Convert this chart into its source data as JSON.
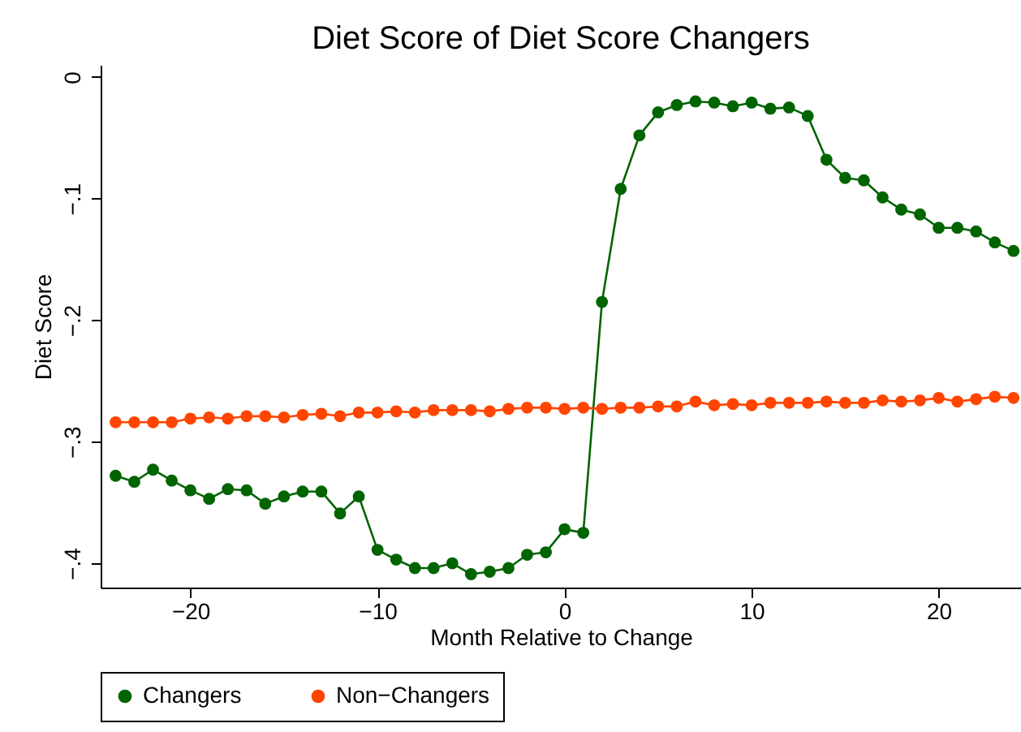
{
  "chart_data": {
    "type": "line",
    "title": "Diet Score of Diet Score Changers",
    "xlabel": "Month Relative to Change",
    "ylabel": "Diet Score",
    "x": [
      -24,
      -23,
      -22,
      -21,
      -20,
      -19,
      -18,
      -17,
      -16,
      -15,
      -14,
      -13,
      -12,
      -11,
      -10,
      -9,
      -8,
      -7,
      -6,
      -5,
      -4,
      -3,
      -2,
      -1,
      0,
      1,
      2,
      3,
      4,
      5,
      6,
      7,
      8,
      9,
      10,
      11,
      12,
      13,
      14,
      15,
      16,
      17,
      18,
      19,
      20,
      21,
      22,
      23,
      24
    ],
    "series": [
      {
        "name": "Changers",
        "color": "#006400",
        "values": [
          -0.328,
          -0.333,
          -0.323,
          -0.332,
          -0.34,
          -0.347,
          -0.339,
          -0.34,
          -0.351,
          -0.345,
          -0.341,
          -0.341,
          -0.359,
          -0.345,
          -0.389,
          -0.397,
          -0.404,
          -0.404,
          -0.4,
          -0.409,
          -0.407,
          -0.404,
          -0.393,
          -0.391,
          -0.372,
          -0.375,
          -0.185,
          -0.092,
          -0.048,
          -0.029,
          -0.023,
          -0.02,
          -0.021,
          -0.024,
          -0.021,
          -0.026,
          -0.025,
          -0.032,
          -0.068,
          -0.083,
          -0.085,
          -0.099,
          -0.109,
          -0.113,
          -0.124,
          -0.124,
          -0.127,
          -0.136,
          -0.143
        ]
      },
      {
        "name": "Non−Changers",
        "color": "#ff4500",
        "values": [
          -0.284,
          -0.284,
          -0.284,
          -0.284,
          -0.281,
          -0.28,
          -0.281,
          -0.279,
          -0.279,
          -0.28,
          -0.278,
          -0.277,
          -0.279,
          -0.276,
          -0.276,
          -0.275,
          -0.276,
          -0.274,
          -0.274,
          -0.274,
          -0.275,
          -0.273,
          -0.272,
          -0.272,
          -0.273,
          -0.272,
          -0.273,
          -0.272,
          -0.272,
          -0.271,
          -0.271,
          -0.267,
          -0.27,
          -0.269,
          -0.27,
          -0.268,
          -0.268,
          -0.268,
          -0.267,
          -0.268,
          -0.268,
          -0.266,
          -0.267,
          -0.266,
          -0.264,
          -0.267,
          -0.265,
          -0.263,
          -0.264
        ]
      }
    ],
    "xlim": [
      -24.8,
      24.4
    ],
    "ylim": [
      -0.42,
      0.01
    ],
    "xticks": [
      {
        "value": -20,
        "label": "−20"
      },
      {
        "value": -10,
        "label": "−10"
      },
      0,
      10,
      20
    ],
    "yticks": [
      {
        "value": -0.4,
        "label": "−.4"
      },
      {
        "value": -0.3,
        "label": "−.3"
      },
      {
        "value": -0.2,
        "label": "−.2"
      },
      {
        "value": -0.1,
        "label": "−.1"
      },
      0
    ],
    "grid": false,
    "legend": "bottom",
    "marker": "circle",
    "line_style": "solid"
  }
}
